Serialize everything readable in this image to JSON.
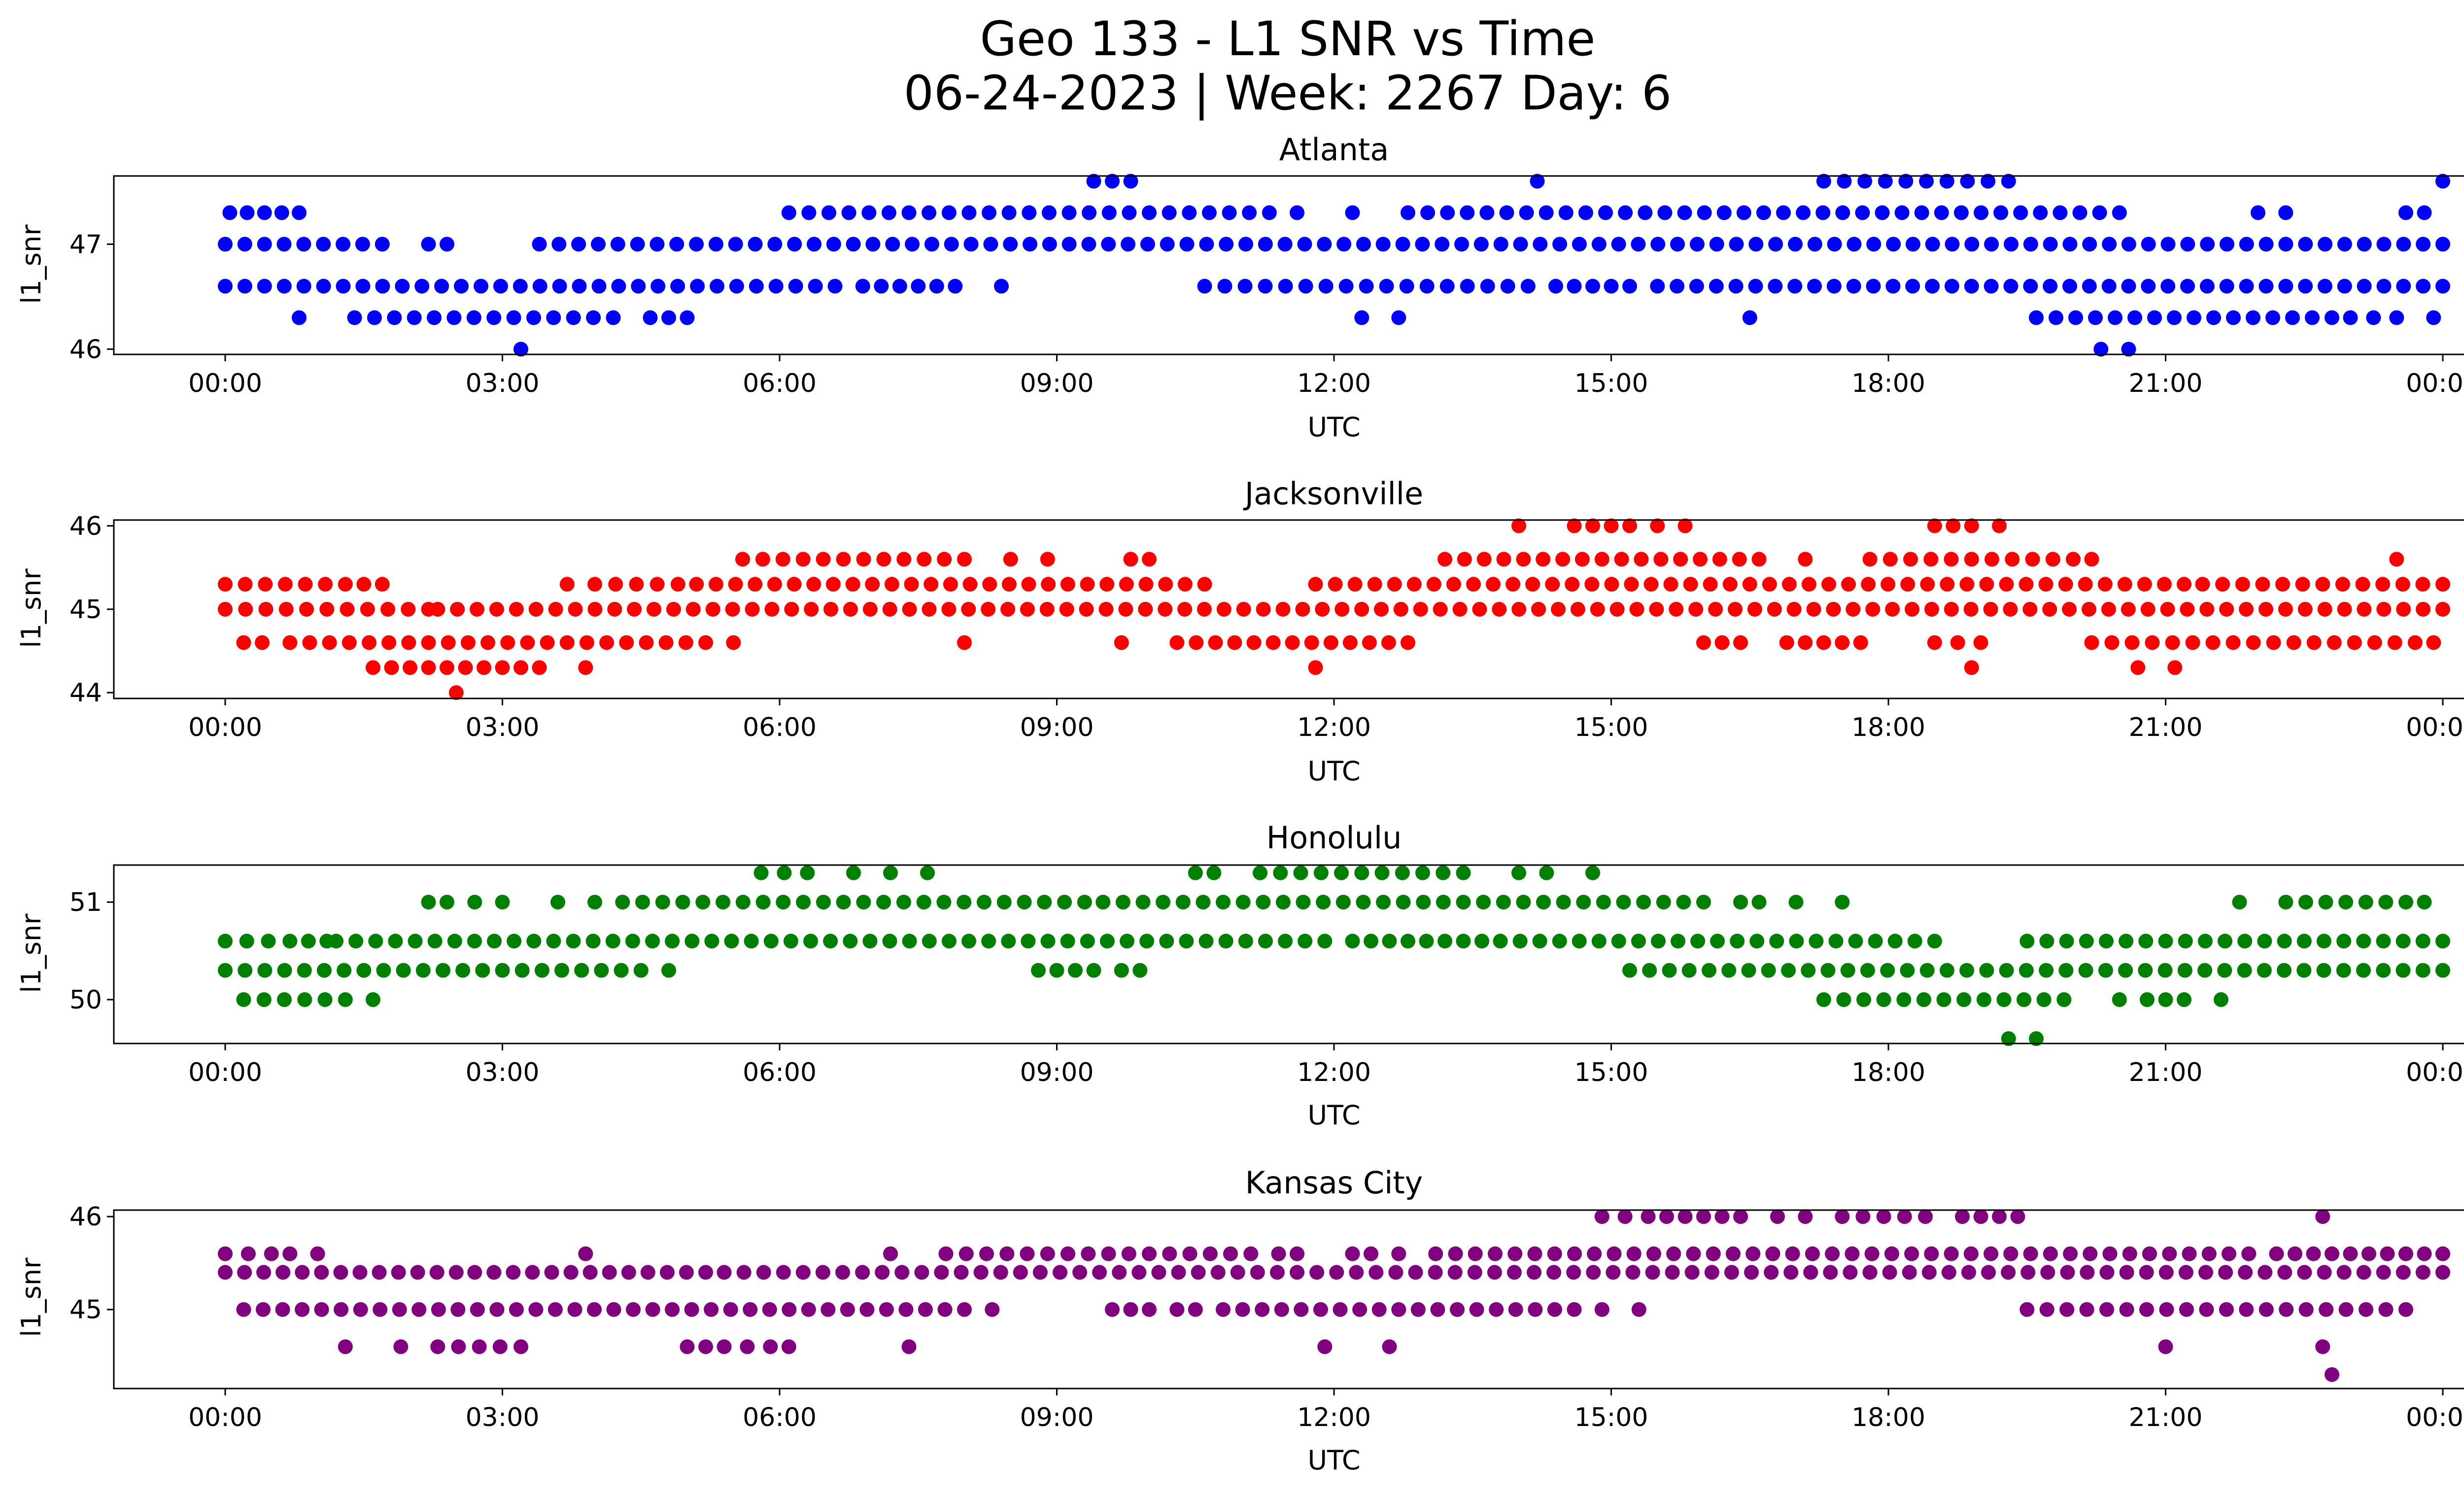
{
  "figure": {
    "title_line1": "Geo 133 - L1 SNR vs Time",
    "title_line2": "06-24-2023 | Week: 2267 Day: 6"
  },
  "chart_data": [
    {
      "type": "scatter",
      "title": "Atlanta",
      "xlabel": "UTC",
      "ylabel": "l1_snr",
      "color": "#0000ff",
      "xticks": [
        "00:00",
        "03:00",
        "06:00",
        "09:00",
        "12:00",
        "15:00",
        "18:00",
        "21:00",
        "00:00"
      ],
      "yticks": [
        46,
        47
      ],
      "ylim": [
        45.95,
        47.65
      ],
      "levels": [
        {
          "y": 47.6,
          "ranges": [
            [
              9.4,
              9.8
            ],
            [
              14.2,
              14.2
            ],
            [
              17.3,
              19.3
            ],
            [
              24.0,
              24.0
            ]
          ]
        },
        {
          "y": 47.3,
          "ranges": [
            [
              0.05,
              0.8
            ],
            [
              6.1,
              11.3
            ],
            [
              11.6,
              11.6
            ],
            [
              12.2,
              12.2
            ],
            [
              12.8,
              20.5
            ],
            [
              22.0,
              22.3
            ],
            [
              23.6,
              23.8
            ]
          ]
        },
        {
          "y": 47.0,
          "ranges": [
            [
              0.0,
              1.7
            ],
            [
              2.2,
              2.4
            ],
            [
              3.4,
              24.0
            ]
          ]
        },
        {
          "y": 46.6,
          "ranges": [
            [
              0.0,
              6.6
            ],
            [
              6.9,
              7.9
            ],
            [
              8.4,
              8.4
            ],
            [
              10.6,
              14.1
            ],
            [
              14.4,
              15.2
            ],
            [
              15.5,
              24.0
            ]
          ]
        },
        {
          "y": 46.3,
          "ranges": [
            [
              0.8,
              0.8
            ],
            [
              1.4,
              4.2
            ],
            [
              4.6,
              5.0
            ],
            [
              12.3,
              12.3
            ],
            [
              12.7,
              12.7
            ],
            [
              16.5,
              16.5
            ],
            [
              19.6,
              22.8
            ],
            [
              23.0,
              23.5
            ],
            [
              23.9,
              23.9
            ]
          ]
        },
        {
          "y": 46.0,
          "ranges": [
            [
              3.2,
              3.2
            ],
            [
              20.3,
              20.3
            ],
            [
              20.6,
              20.6
            ]
          ]
        }
      ]
    },
    {
      "type": "scatter",
      "title": "Jacksonville",
      "xlabel": "UTC",
      "ylabel": "l1_snr",
      "color": "#ff0000",
      "xticks": [
        "00:00",
        "03:00",
        "06:00",
        "09:00",
        "12:00",
        "15:00",
        "18:00",
        "21:00",
        "00:00"
      ],
      "yticks": [
        44,
        45,
        46
      ],
      "ylim": [
        43.93,
        46.07
      ],
      "levels": [
        {
          "y": 46.0,
          "ranges": [
            [
              14.0,
              14.0
            ],
            [
              14.6,
              15.2
            ],
            [
              15.5,
              15.8
            ],
            [
              18.5,
              18.9
            ],
            [
              19.2,
              19.2
            ]
          ]
        },
        {
          "y": 45.6,
          "ranges": [
            [
              5.6,
              8.0
            ],
            [
              8.5,
              8.5
            ],
            [
              8.9,
              8.9
            ],
            [
              9.8,
              10.0
            ],
            [
              13.2,
              16.6
            ],
            [
              17.1,
              17.1
            ],
            [
              17.8,
              20.0
            ],
            [
              20.2,
              20.2
            ],
            [
              23.5,
              23.5
            ]
          ]
        },
        {
          "y": 45.3,
          "ranges": [
            [
              0.0,
              1.3
            ],
            [
              1.5,
              1.7
            ],
            [
              3.7,
              3.8
            ],
            [
              4.0,
              4.9
            ],
            [
              5.1,
              10.6
            ],
            [
              11.8,
              21.2
            ],
            [
              21.4,
              24.0
            ]
          ]
        },
        {
          "y": 45.0,
          "ranges": [
            [
              0.0,
              2.2
            ],
            [
              2.3,
              24.0
            ]
          ]
        },
        {
          "y": 44.6,
          "ranges": [
            [
              0.2,
              0.4
            ],
            [
              0.7,
              5.2
            ],
            [
              5.5,
              5.6
            ],
            [
              8.0,
              8.1
            ],
            [
              9.7,
              9.7
            ],
            [
              10.3,
              12.8
            ],
            [
              16.0,
              16.2
            ],
            [
              16.4,
              16.4
            ],
            [
              16.9,
              17.7
            ],
            [
              18.5,
              19.0
            ],
            [
              20.2,
              23.7
            ],
            [
              23.9,
              24.0
            ]
          ]
        },
        {
          "y": 44.3,
          "ranges": [
            [
              1.6,
              3.2
            ],
            [
              3.4,
              3.4
            ],
            [
              3.9,
              4.0
            ],
            [
              11.8,
              11.8
            ],
            [
              18.9,
              18.9
            ],
            [
              20.7,
              20.7
            ],
            [
              21.1,
              21.1
            ]
          ]
        },
        {
          "y": 44.0,
          "ranges": [
            [
              2.5,
              2.5
            ]
          ]
        }
      ]
    },
    {
      "type": "scatter",
      "title": "Honolulu",
      "xlabel": "UTC",
      "ylabel": "l1_snr",
      "color": "#008000",
      "xticks": [
        "00:00",
        "03:00",
        "06:00",
        "09:00",
        "12:00",
        "15:00",
        "18:00",
        "21:00",
        "00:00"
      ],
      "yticks": [
        50,
        51
      ],
      "ylim": [
        49.55,
        51.38
      ],
      "levels": [
        {
          "y": 51.3,
          "ranges": [
            [
              5.8,
              6.3
            ],
            [
              6.8,
              6.8
            ],
            [
              7.2,
              7.2
            ],
            [
              7.6,
              7.6
            ],
            [
              10.5,
              10.7
            ],
            [
              11.2,
              13.4
            ],
            [
              14.0,
              14.0
            ],
            [
              14.3,
              14.3
            ],
            [
              14.8,
              14.8
            ]
          ]
        },
        {
          "y": 51.0,
          "ranges": [
            [
              2.2,
              2.4
            ],
            [
              2.7,
              2.7
            ],
            [
              3.0,
              3.0
            ],
            [
              3.6,
              3.6
            ],
            [
              4.0,
              4.1
            ],
            [
              4.3,
              9.3
            ],
            [
              9.5,
              16.0
            ],
            [
              16.4,
              16.6
            ],
            [
              17.0,
              17.0
            ],
            [
              17.5,
              17.5
            ],
            [
              21.8,
              21.8
            ],
            [
              22.3,
              23.6
            ],
            [
              23.8,
              23.8
            ]
          ]
        },
        {
          "y": 50.6,
          "ranges": [
            [
              0.0,
              0.7
            ],
            [
              0.9,
              1.1
            ],
            [
              1.2,
              11.9
            ],
            [
              12.2,
              13.6
            ],
            [
              13.8,
              18.5
            ],
            [
              19.5,
              24.0
            ]
          ]
        },
        {
          "y": 50.3,
          "ranges": [
            [
              0.0,
              4.5
            ],
            [
              4.8,
              4.8
            ],
            [
              8.8,
              9.2
            ],
            [
              9.4,
              9.7
            ],
            [
              9.9,
              9.9
            ],
            [
              15.2,
              24.0
            ]
          ]
        },
        {
          "y": 50.0,
          "ranges": [
            [
              0.2,
              1.3
            ],
            [
              1.6,
              1.6
            ],
            [
              17.3,
              19.9
            ],
            [
              20.5,
              20.5
            ],
            [
              20.8,
              21.2
            ],
            [
              21.6,
              21.7
            ]
          ]
        },
        {
          "y": 49.6,
          "ranges": [
            [
              19.3,
              19.3
            ],
            [
              19.6,
              19.6
            ]
          ]
        }
      ]
    },
    {
      "type": "scatter",
      "title": "Kansas City",
      "xlabel": "UTC",
      "ylabel": "l1_snr",
      "color": "#800080",
      "xticks": [
        "00:00",
        "03:00",
        "06:00",
        "09:00",
        "12:00",
        "15:00",
        "18:00",
        "21:00",
        "00:00"
      ],
      "yticks": [
        45,
        46
      ],
      "ylim": [
        44.15,
        46.07
      ],
      "levels": [
        {
          "y": 46.0,
          "ranges": [
            [
              14.9,
              15.4
            ],
            [
              15.6,
              16.4
            ],
            [
              16.8,
              16.8
            ],
            [
              17.1,
              17.1
            ],
            [
              17.5,
              18.4
            ],
            [
              18.8,
              19.4
            ],
            [
              22.7,
              22.7
            ]
          ]
        },
        {
          "y": 45.6,
          "ranges": [
            [
              0.0,
              0.5
            ],
            [
              0.7,
              1.0
            ],
            [
              3.9,
              4.0
            ],
            [
              7.2,
              7.2
            ],
            [
              7.8,
              11.1
            ],
            [
              11.4,
              11.6
            ],
            [
              12.2,
              12.4
            ],
            [
              12.7,
              12.7
            ],
            [
              13.1,
              21.9
            ],
            [
              22.2,
              22.4
            ],
            [
              22.6,
              24.0
            ]
          ]
        },
        {
          "y": 45.4,
          "ranges": [
            [
              0.0,
              2.5
            ],
            [
              2.7,
              5.2
            ],
            [
              5.4,
              24.0
            ]
          ]
        },
        {
          "y": 45.0,
          "ranges": [
            [
              0.2,
              8.0
            ],
            [
              8.3,
              8.3
            ],
            [
              9.6,
              10.0
            ],
            [
              10.3,
              10.5
            ],
            [
              10.8,
              14.6
            ],
            [
              14.9,
              14.9
            ],
            [
              15.3,
              15.3
            ],
            [
              19.5,
              23.6
            ]
          ]
        },
        {
          "y": 44.6,
          "ranges": [
            [
              1.3,
              1.3
            ],
            [
              1.9,
              1.9
            ],
            [
              2.3,
              3.2
            ],
            [
              5.0,
              5.2
            ],
            [
              5.4,
              5.9
            ],
            [
              6.1,
              6.1
            ],
            [
              7.4,
              7.5
            ],
            [
              11.9,
              11.9
            ],
            [
              12.6,
              12.7
            ],
            [
              21.0,
              21.1
            ],
            [
              22.7,
              22.8
            ]
          ]
        },
        {
          "y": 44.3,
          "ranges": [
            [
              22.8,
              22.8
            ]
          ]
        }
      ]
    }
  ]
}
